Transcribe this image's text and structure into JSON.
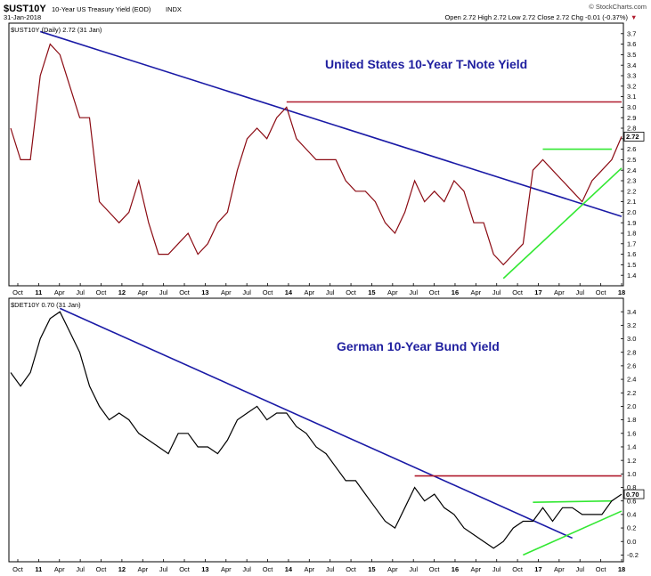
{
  "header": {
    "symbol": "$UST10Y",
    "description": "10-Year US Treasury Yield (EOD)",
    "exchange": "INDX",
    "date": "31-Jan-2018",
    "quote": "Open 2.72  High 2.72  Low 2.72  Close 2.72  Chg -0.01 (-0.37%)",
    "chg_marker": "▼",
    "copyright": "© StockCharts.com"
  },
  "colors": {
    "trend_blue": "#1a1aa6",
    "resistance_red": "#b01c2e",
    "support_green": "#33e833",
    "ust_line": "#8b0a12",
    "bund_line": "#000000",
    "title_blue": "#1f1f9f"
  },
  "x_axis_labels": [
    "Oct",
    "11",
    "Apr",
    "Jul",
    "Oct",
    "12",
    "Apr",
    "Jul",
    "Oct",
    "13",
    "Apr",
    "Jul",
    "Oct",
    "14",
    "Apr",
    "Jul",
    "Oct",
    "15",
    "Apr",
    "Jul",
    "Oct",
    "16",
    "Apr",
    "Jul",
    "Oct",
    "17",
    "Apr",
    "Jul",
    "Oct",
    "18"
  ],
  "chart_data": [
    {
      "type": "line",
      "legend": "$UST10Y (Daily) 2.72 (31 Jan)",
      "title": "United States 10-Year T-Note Yield",
      "ylim": [
        1.3,
        3.8
      ],
      "y_ticks": [
        "1.4",
        "1.5",
        "1.6",
        "1.7",
        "1.8",
        "1.9",
        "2.0",
        "2.1",
        "2.2",
        "2.3",
        "2.4",
        "2.5",
        "2.6",
        "2.7",
        "2.8",
        "2.9",
        "3.0",
        "3.1",
        "3.2",
        "3.3",
        "3.4",
        "3.5",
        "3.6",
        "3.7"
      ],
      "last_value_label": "2.72",
      "series": {
        "values": [
          2.8,
          2.5,
          2.5,
          3.3,
          3.6,
          3.5,
          3.2,
          2.9,
          2.9,
          2.1,
          2.0,
          1.9,
          2.0,
          2.3,
          1.9,
          1.6,
          1.6,
          1.7,
          1.8,
          1.6,
          1.7,
          1.9,
          2.0,
          2.4,
          2.7,
          2.8,
          2.7,
          2.9,
          3.0,
          2.7,
          2.6,
          2.5,
          2.5,
          2.5,
          2.3,
          2.2,
          2.2,
          2.1,
          1.9,
          1.8,
          2.0,
          2.3,
          2.1,
          2.2,
          2.1,
          2.3,
          2.2,
          1.9,
          1.9,
          1.6,
          1.5,
          1.6,
          1.7,
          2.4,
          2.5,
          2.4,
          2.3,
          2.2,
          2.1,
          2.3,
          2.4,
          2.5,
          2.72
        ]
      },
      "trendlines": [
        {
          "color": "trend_blue",
          "from": [
            3,
            3.72
          ],
          "to": [
            62,
            1.96
          ]
        },
        {
          "color": "resistance_red",
          "from": [
            28,
            3.05
          ],
          "to": [
            62,
            3.05
          ]
        },
        {
          "color": "support_green",
          "from": [
            54,
            2.6
          ],
          "to": [
            61,
            2.6
          ]
        },
        {
          "color": "support_green",
          "from": [
            50,
            1.37
          ],
          "to": [
            62,
            2.42
          ]
        }
      ]
    },
    {
      "type": "line",
      "legend": "$DET10Y 0.70 (31 Jan)",
      "title": "German 10-Year Bund Yield",
      "ylim": [
        -0.3,
        3.6
      ],
      "y_ticks": [
        "-0.2",
        "0.0",
        "0.2",
        "0.4",
        "0.6",
        "0.8",
        "1.0",
        "1.2",
        "1.4",
        "1.6",
        "1.8",
        "2.0",
        "2.2",
        "2.4",
        "2.6",
        "2.8",
        "3.0",
        "3.2",
        "3.4"
      ],
      "last_value_label": "0.70",
      "series": {
        "values": [
          2.5,
          2.3,
          2.5,
          3.0,
          3.3,
          3.4,
          3.1,
          2.8,
          2.3,
          2.0,
          1.8,
          1.9,
          1.8,
          1.6,
          1.5,
          1.4,
          1.3,
          1.6,
          1.6,
          1.4,
          1.4,
          1.3,
          1.5,
          1.8,
          1.9,
          2.0,
          1.8,
          1.9,
          1.9,
          1.7,
          1.6,
          1.4,
          1.3,
          1.1,
          0.9,
          0.9,
          0.7,
          0.5,
          0.3,
          0.2,
          0.5,
          0.8,
          0.6,
          0.7,
          0.5,
          0.4,
          0.2,
          0.1,
          0.0,
          -0.1,
          0.0,
          0.2,
          0.3,
          0.3,
          0.5,
          0.3,
          0.5,
          0.5,
          0.4,
          0.4,
          0.4,
          0.6,
          0.7
        ]
      },
      "trendlines": [
        {
          "color": "trend_blue",
          "from": [
            5,
            3.45
          ],
          "to": [
            57,
            0.05
          ]
        },
        {
          "color": "resistance_red",
          "from": [
            41,
            0.97
          ],
          "to": [
            62,
            0.97
          ]
        },
        {
          "color": "support_green",
          "from": [
            53,
            0.58
          ],
          "to": [
            61,
            0.6
          ]
        },
        {
          "color": "support_green",
          "from": [
            52,
            -0.2
          ],
          "to": [
            62,
            0.45
          ]
        }
      ]
    }
  ]
}
